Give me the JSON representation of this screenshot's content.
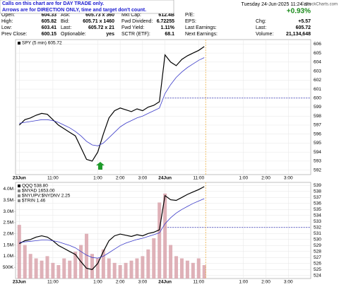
{
  "header": {
    "notice": [
      "Calls on this chart are for DAY TRADE only.",
      "Arrows are for DIRECTION ONLY, time and target don't count."
    ],
    "datetime": "Tuesday 24-Jun-2025 11:24 am",
    "copyright": "© StockCharts.com",
    "change_pct": "+0.93%",
    "quote": [
      [
        {
          "label": "Open:",
          "value": "604.33"
        },
        {
          "label": "Ask:",
          "value": "605.73 x 360"
        },
        {
          "label": "Mkt Cap:",
          "value": "612.4B"
        },
        {
          "label": "P/E:"
        }
      ],
      [
        {
          "label": "High:",
          "value": "605.82"
        },
        {
          "label": "Bid:",
          "value": "605.71 x 1460"
        },
        {
          "label": "Fwd Dividend:",
          "value": "6.72255"
        },
        {
          "label": "EPS:"
        },
        {
          "label": "Chg:",
          "value": "+5.57"
        }
      ],
      [
        {
          "label": "Low:",
          "value": "603.41"
        },
        {
          "label": "Last:",
          "value": "605.72 x 21"
        },
        {
          "label": "Fwd Yield:",
          "value": "1.11%"
        },
        {
          "label": "Last Earnings:"
        },
        {
          "label": "Last:",
          "value": "605.72"
        }
      ],
      [
        {
          "label": "Prev Close:",
          "value": "600.15"
        },
        {
          "label": "Optionable:",
          "value": "yes"
        },
        {
          "label": "SCTR (ETF):",
          "value": "68.1"
        },
        {
          "label": "Next Earnings:"
        },
        {
          "label": "Volume:",
          "value": "21,134,648"
        }
      ]
    ]
  },
  "chart_data": [
    {
      "type": "line",
      "legend": [
        "SPY (5 min) 605.72"
      ],
      "x": [
        0,
        3,
        6,
        9,
        12,
        15,
        18,
        21,
        24,
        27,
        30,
        33,
        36,
        39,
        42,
        45,
        48,
        51,
        54,
        57,
        60,
        63,
        66,
        69,
        72,
        75,
        78,
        81,
        84,
        87,
        90,
        93,
        96,
        99
      ],
      "series": [
        {
          "color": "#000000",
          "values": [
            597.0,
            597.6,
            597.8,
            598.1,
            598.3,
            598.2,
            597.6,
            597.0,
            596.6,
            596.2,
            595.8,
            594.5,
            593.2,
            593.0,
            594.0,
            596.0,
            597.8,
            598.6,
            598.9,
            598.7,
            598.5,
            598.8,
            598.6,
            599.0,
            599.2,
            599.6,
            604.8,
            604.0,
            603.6,
            604.3,
            604.7,
            605.0,
            605.3,
            605.72
          ]
        },
        {
          "color": "#3a3ac8",
          "values": [
            597.2,
            597.3,
            597.4,
            597.5,
            597.6,
            597.6,
            597.5,
            597.3,
            597.0,
            596.7,
            596.3,
            595.8,
            595.2,
            594.8,
            594.7,
            595.0,
            595.6,
            596.2,
            596.8,
            597.2,
            597.5,
            597.8,
            598.0,
            598.3,
            598.6,
            598.9,
            600.5,
            601.5,
            602.3,
            602.9,
            603.4,
            603.8,
            604.2,
            604.5
          ]
        }
      ],
      "hlines": [
        600
      ],
      "xlim": [
        -2,
        156
      ],
      "xticks": [
        {
          "value": 0,
          "label": "23Jun"
        },
        {
          "value": 18,
          "label": "11:00"
        },
        {
          "value": 42,
          "label": "1:00"
        },
        {
          "value": 54,
          "label": "2:00"
        },
        {
          "value": 66,
          "label": "3:00"
        },
        {
          "value": 78,
          "label": "24Jun"
        },
        {
          "value": 96,
          "label": "11:00"
        },
        {
          "value": 120,
          "label": "1:00"
        },
        {
          "value": 132,
          "label": "2:00"
        },
        {
          "value": 144,
          "label": "3:00"
        }
      ],
      "ylim": [
        591.5,
        606.5
      ],
      "yticks": [
        592,
        593,
        594,
        595,
        596,
        597,
        598,
        599,
        600,
        601,
        602,
        603,
        604,
        605,
        606
      ],
      "grid": true
    },
    {
      "type": "line",
      "legend": [
        "QQQ 538.80",
        "$NYAD 1653.00",
        "$NYUPV:$NYDNV 2.25",
        "$TRIN 1.46"
      ],
      "x": [
        0,
        3,
        6,
        9,
        12,
        15,
        18,
        21,
        24,
        27,
        30,
        33,
        36,
        39,
        42,
        45,
        48,
        51,
        54,
        57,
        60,
        63,
        66,
        69,
        72,
        75,
        78,
        81,
        84,
        87,
        90,
        93,
        96,
        99
      ],
      "series": [
        {
          "type": "bar",
          "axis": "y2",
          "color": "#d9a3ab",
          "values": [
            2400000,
            1500000,
            1100000,
            900000,
            800000,
            1000000,
            700000,
            600000,
            900000,
            800000,
            1200000,
            1500000,
            2000000,
            1100000,
            900000,
            1300000,
            900000,
            700000,
            600000,
            700000,
            800000,
            900000,
            1000000,
            1300000,
            1800000,
            3400000,
            3800000,
            1500000,
            1000000,
            900000,
            800000,
            700000,
            900000,
            600000
          ]
        },
        {
          "color": "#000000",
          "values": [
            529.3,
            529.8,
            530.0,
            530.4,
            530.6,
            530.4,
            529.8,
            529.0,
            528.5,
            528.0,
            527.5,
            526.3,
            525.2,
            525.0,
            526.0,
            528.0,
            529.8,
            530.6,
            530.9,
            530.7,
            530.5,
            530.8,
            530.6,
            531.0,
            531.2,
            531.6,
            537.3,
            536.6,
            536.5,
            537.0,
            537.5,
            537.9,
            538.3,
            538.8
          ]
        },
        {
          "color": "#3a3ac8",
          "values": [
            529.5,
            529.6,
            529.7,
            529.8,
            529.9,
            529.9,
            529.8,
            529.6,
            529.3,
            529.0,
            528.6,
            528.0,
            527.4,
            527.0,
            526.9,
            527.2,
            527.8,
            528.4,
            529.0,
            529.4,
            529.7,
            530.0,
            530.2,
            530.5,
            530.8,
            531.1,
            532.6,
            533.6,
            534.4,
            535.0,
            535.5,
            536.0,
            536.4,
            536.8
          ]
        }
      ],
      "hlines": [
        532
      ],
      "xlim": [
        -2,
        156
      ],
      "xticks": [
        {
          "value": 0,
          "label": "23Jun"
        },
        {
          "value": 18,
          "label": "11:00"
        },
        {
          "value": 42,
          "label": "1:00"
        },
        {
          "value": 54,
          "label": "2:00"
        },
        {
          "value": 66,
          "label": "3:00"
        },
        {
          "value": 78,
          "label": "24Jun"
        },
        {
          "value": 96,
          "label": "11:00"
        },
        {
          "value": 120,
          "label": "1:00"
        },
        {
          "value": 132,
          "label": "2:00"
        },
        {
          "value": 144,
          "label": "3:00"
        }
      ],
      "ylim": [
        523.5,
        539.5
      ],
      "yticks": [
        524,
        525,
        526,
        527,
        528,
        529,
        530,
        531,
        532,
        533,
        534,
        535,
        536,
        537,
        538,
        539
      ],
      "y2lim": [
        0,
        4300000
      ],
      "y2ticks": [
        {
          "value": 500000,
          "label": "500K"
        },
        {
          "value": 1000000,
          "label": "1.0M"
        },
        {
          "value": 1500000,
          "label": "1.5M"
        },
        {
          "value": 2000000,
          "label": "2.0M"
        },
        {
          "value": 2500000,
          "label": "2.5M"
        },
        {
          "value": 3000000,
          "label": "3.0M"
        },
        {
          "value": 3500000,
          "label": "3.5M"
        },
        {
          "value": 4000000,
          "label": "4.0M"
        }
      ],
      "grid": true
    }
  ]
}
